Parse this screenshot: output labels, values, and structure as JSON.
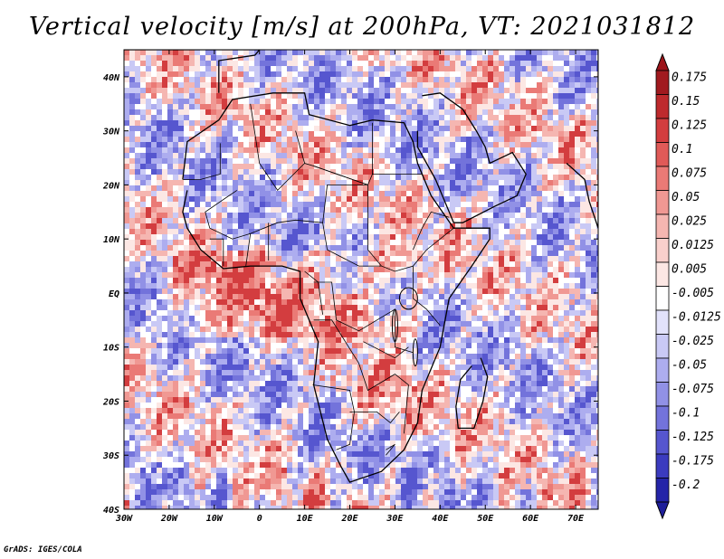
{
  "title": "Vertical velocity [m/s] at 200hPa, VT: 2021031812",
  "credit": "GrADS: IGES/COLA",
  "chart_data": {
    "type": "heatmap",
    "variable": "Vertical velocity",
    "units": "m/s",
    "level": "200hPa",
    "valid_time": "2021031812",
    "lon_range": [
      -30,
      75
    ],
    "lat_range": [
      -40,
      45
    ],
    "xticks": [
      {
        "value": -30,
        "label": "30W"
      },
      {
        "value": -20,
        "label": "20W"
      },
      {
        "value": -10,
        "label": "10W"
      },
      {
        "value": 0,
        "label": "0"
      },
      {
        "value": 10,
        "label": "10E"
      },
      {
        "value": 20,
        "label": "20E"
      },
      {
        "value": 30,
        "label": "30E"
      },
      {
        "value": 40,
        "label": "40E"
      },
      {
        "value": 50,
        "label": "50E"
      },
      {
        "value": 60,
        "label": "60E"
      },
      {
        "value": 70,
        "label": "70E"
      }
    ],
    "yticks": [
      {
        "value": 40,
        "label": "40N"
      },
      {
        "value": 30,
        "label": "30N"
      },
      {
        "value": 20,
        "label": "20N"
      },
      {
        "value": 10,
        "label": "10N"
      },
      {
        "value": 0,
        "label": "EQ"
      },
      {
        "value": -10,
        "label": "10S"
      },
      {
        "value": -20,
        "label": "20S"
      },
      {
        "value": -30,
        "label": "30S"
      },
      {
        "value": -40,
        "label": "40S"
      }
    ],
    "colorbar": {
      "levels": [
        {
          "label": "0.175",
          "color": "#a11a1f"
        },
        {
          "label": "0.15",
          "color": "#be2a2d"
        },
        {
          "label": "0.125",
          "color": "#d33d3f"
        },
        {
          "label": "0.1",
          "color": "#e05a58"
        },
        {
          "label": "0.075",
          "color": "#ea7a76"
        },
        {
          "label": "0.05",
          "color": "#f09893"
        },
        {
          "label": "0.025",
          "color": "#f5b6b1"
        },
        {
          "label": "0.0125",
          "color": "#f9d0cc"
        },
        {
          "label": "0.005",
          "color": "#fce7e4"
        },
        {
          "label": "-0.005",
          "color": "#ffffff"
        },
        {
          "label": "-0.0125",
          "color": "#e2e2fb"
        },
        {
          "label": "-0.025",
          "color": "#c9c9f5"
        },
        {
          "label": "-0.05",
          "color": "#adadef"
        },
        {
          "label": "-0.075",
          "color": "#9191e6"
        },
        {
          "label": "-0.1",
          "color": "#7373db"
        },
        {
          "label": "-0.125",
          "color": "#5656cf"
        },
        {
          "label": "-0.175",
          "color": "#3b3bbf"
        },
        {
          "label": "-0.2",
          "color": "#2424a8"
        }
      ],
      "top_color": "#9c1419",
      "bottom_color": "#1e1e9a"
    }
  }
}
